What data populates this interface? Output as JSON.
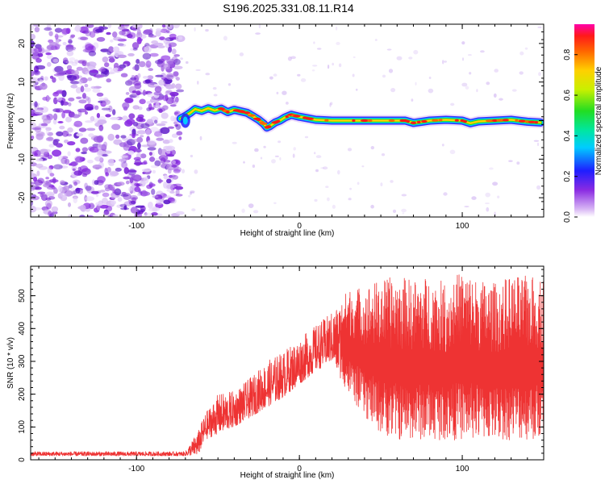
{
  "title": "S196.2025.331.08.11.R14",
  "colors": {
    "background": "#ffffff",
    "axis": "#000000",
    "snr_line": "#ee3333",
    "noise_purple": "#8a2be2",
    "noise_light": "#c9a8f0"
  },
  "chart_data": [
    {
      "type": "heatmap",
      "name": "spectrogram",
      "xlabel": "Height of straight line (km)",
      "ylabel": "Frequency (Hz)",
      "xlim": [
        -165,
        150
      ],
      "ylim": [
        -25,
        25
      ],
      "xticks": [
        -100,
        0,
        100
      ],
      "yticks": [
        -20,
        -10,
        0,
        10,
        20
      ],
      "noise_region_x": [
        -165,
        -73
      ],
      "signal_start_x": -73,
      "signal_track": {
        "x": [
          -73,
          -70,
          -67,
          -64,
          -60,
          -56,
          -52,
          -48,
          -44,
          -40,
          -36,
          -32,
          -28,
          -25,
          -22,
          -20,
          -18,
          -15,
          -12,
          -9,
          -5,
          0,
          5,
          10,
          20,
          30,
          40,
          50,
          60,
          65,
          70,
          80,
          90,
          100,
          105,
          110,
          120,
          130,
          140,
          148
        ],
        "y": [
          0.5,
          1.2,
          2.0,
          3.0,
          2.5,
          3.2,
          2.6,
          3.1,
          2.2,
          2.8,
          2.4,
          2.0,
          1.0,
          0.2,
          -0.8,
          -1.8,
          -1.4,
          -0.5,
          0.0,
          0.8,
          1.5,
          1.0,
          0.6,
          0.2,
          0.0,
          0.0,
          0.0,
          0.0,
          0.0,
          0.0,
          -0.6,
          0.0,
          0.2,
          0.0,
          -0.7,
          -0.2,
          0.0,
          0.2,
          -0.3,
          -0.5
        ]
      },
      "colorbar": {
        "label": "Normalized spectral amplitude",
        "range": [
          0.0,
          0.95
        ],
        "ticks": [
          0.0,
          0.2,
          0.4,
          0.6,
          0.8
        ],
        "tick_labels": [
          "0.0",
          "0.2",
          "0.4",
          "0.6",
          "0.8"
        ]
      }
    },
    {
      "type": "line",
      "name": "snr",
      "xlabel": "Height of straight line (km)",
      "ylabel": "SNR (10 * v/v)",
      "xlim": [
        -165,
        150
      ],
      "ylim": [
        0,
        590
      ],
      "xticks": [
        -100,
        0,
        100
      ],
      "yticks": [
        0,
        100,
        200,
        300,
        400,
        500
      ],
      "series": [
        {
          "name": "SNR",
          "envelope": {
            "x": [
              -165,
              -130,
              -100,
              -70,
              -62,
              -58,
              -50,
              -40,
              -30,
              -20,
              -10,
              0,
              10,
              20,
              30,
              40,
              50,
              60,
              70,
              80,
              90,
              100,
              110,
              120,
              130,
              140,
              150
            ],
            "low": [
              12,
              12,
              12,
              12,
              15,
              60,
              80,
              100,
              130,
              160,
              190,
              230,
              270,
              300,
              200,
              130,
              80,
              60,
              60,
              60,
              60,
              60,
              60,
              60,
              60,
              60,
              60
            ],
            "high": [
              25,
              25,
              25,
              25,
              90,
              140,
              200,
              210,
              250,
              300,
              330,
              370,
              410,
              450,
              520,
              530,
              550,
              560,
              550,
              560,
              540,
              580,
              550,
              540,
              560,
              560,
              560
            ]
          }
        }
      ]
    }
  ]
}
